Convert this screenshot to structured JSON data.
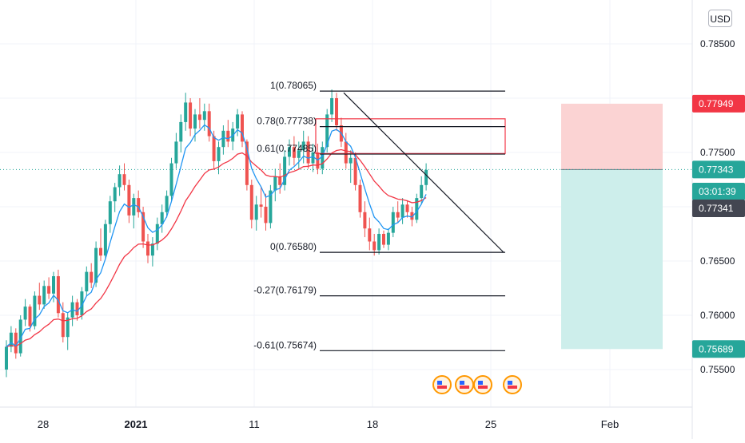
{
  "header": {
    "currency": "USD"
  },
  "chart_data": {
    "type": "candlestick",
    "title": "",
    "y_ticks": [
      "0.78500",
      "0.77500",
      "0.76500",
      "0.76000",
      "0.75500"
    ],
    "y_tick_values": [
      0.785,
      0.775,
      0.765,
      0.76,
      0.755
    ],
    "x_ticks": [
      "28",
      "2021",
      "11",
      "18",
      "25",
      "Feb"
    ],
    "price_badges": [
      {
        "label": "0.77949",
        "value": 0.77949,
        "color": "#f23645"
      },
      {
        "label": "0.77343",
        "value": 0.77343,
        "color": "#26a69a"
      },
      {
        "label": "03:01:39",
        "value": 0.7714,
        "color": "#26a69a"
      },
      {
        "label": "0.77341",
        "value": 0.76985,
        "color": "#434651"
      },
      {
        "label": "0.75689",
        "value": 0.75689,
        "color": "#26a69a"
      }
    ],
    "current_price": 0.77343,
    "fib_levels": [
      {
        "label": "1(0.78065)",
        "value": 0.78065
      },
      {
        "label": "0.78(0.77738)",
        "value": 0.77738
      },
      {
        "label": "0.61(0.77485)",
        "value": 0.77485
      },
      {
        "label": "0(0.76580)",
        "value": 0.7658
      },
      {
        "label": "-0.27(0.76179)",
        "value": 0.76179
      },
      {
        "label": "-0.61(0.75674)",
        "value": 0.75674
      }
    ],
    "supply_zone": {
      "top": 0.7781,
      "bottom": 0.7749
    },
    "position_tool": {
      "entry": 0.77343,
      "stop": 0.77949,
      "target": 0.75689
    },
    "trend_line": {
      "from": 0.7805,
      "to": 0.7658
    },
    "ma_colors": {
      "fast": "#2196f3",
      "slow": "#f23645"
    },
    "colors": {
      "up": "#26a69a",
      "down": "#ef5350",
      "stop_zone": "#fbd3d3",
      "target_zone": "#cdeeeb"
    },
    "candles": [
      [
        0.755,
        0.7577,
        0.7543,
        0.7571
      ],
      [
        0.7571,
        0.759,
        0.7566,
        0.7584
      ],
      [
        0.7584,
        0.7588,
        0.756,
        0.7565
      ],
      [
        0.7565,
        0.76,
        0.7562,
        0.7596
      ],
      [
        0.7596,
        0.7615,
        0.759,
        0.7608
      ],
      [
        0.7608,
        0.761,
        0.7585,
        0.759
      ],
      [
        0.759,
        0.7622,
        0.7587,
        0.7618
      ],
      [
        0.7618,
        0.763,
        0.7605,
        0.761
      ],
      [
        0.761,
        0.7632,
        0.7606,
        0.7627
      ],
      [
        0.7627,
        0.7635,
        0.7615,
        0.762
      ],
      [
        0.762,
        0.764,
        0.7612,
        0.7636
      ],
      [
        0.7636,
        0.7642,
        0.7598,
        0.7602
      ],
      [
        0.7602,
        0.7612,
        0.7575,
        0.758
      ],
      [
        0.758,
        0.7602,
        0.7568,
        0.7598
      ],
      [
        0.7598,
        0.7618,
        0.759,
        0.7612
      ],
      [
        0.7612,
        0.7615,
        0.7595,
        0.76
      ],
      [
        0.76,
        0.7626,
        0.7596,
        0.7622
      ],
      [
        0.7622,
        0.7645,
        0.7618,
        0.764
      ],
      [
        0.764,
        0.7648,
        0.7625,
        0.763
      ],
      [
        0.763,
        0.7668,
        0.7626,
        0.7662
      ],
      [
        0.7662,
        0.768,
        0.765,
        0.7655
      ],
      [
        0.7655,
        0.7688,
        0.7652,
        0.7684
      ],
      [
        0.7684,
        0.771,
        0.7676,
        0.7705
      ],
      [
        0.7705,
        0.7722,
        0.7695,
        0.7718
      ],
      [
        0.7718,
        0.7738,
        0.771,
        0.773
      ],
      [
        0.773,
        0.774,
        0.7715,
        0.772
      ],
      [
        0.772,
        0.7725,
        0.7685,
        0.7692
      ],
      [
        0.7692,
        0.7712,
        0.768,
        0.7708
      ],
      [
        0.7708,
        0.7715,
        0.769,
        0.7695
      ],
      [
        0.7695,
        0.77,
        0.7662,
        0.7668
      ],
      [
        0.7668,
        0.7675,
        0.7648,
        0.7655
      ],
      [
        0.7655,
        0.7672,
        0.7645,
        0.7666
      ],
      [
        0.7666,
        0.769,
        0.766,
        0.7684
      ],
      [
        0.7684,
        0.7702,
        0.7676,
        0.7695
      ],
      [
        0.7695,
        0.7715,
        0.769,
        0.771
      ],
      [
        0.771,
        0.7745,
        0.7705,
        0.774
      ],
      [
        0.774,
        0.7768,
        0.7735,
        0.776
      ],
      [
        0.776,
        0.7785,
        0.775,
        0.7778
      ],
      [
        0.7778,
        0.7805,
        0.777,
        0.7796
      ],
      [
        0.7796,
        0.78,
        0.7765,
        0.7772
      ],
      [
        0.7772,
        0.779,
        0.776,
        0.7785
      ],
      [
        0.7785,
        0.78,
        0.7772,
        0.778
      ],
      [
        0.778,
        0.7795,
        0.777,
        0.7788
      ],
      [
        0.7788,
        0.7795,
        0.776,
        0.7765
      ],
      [
        0.7765,
        0.777,
        0.7735,
        0.7742
      ],
      [
        0.7742,
        0.776,
        0.773,
        0.7755
      ],
      [
        0.7755,
        0.7775,
        0.7748,
        0.777
      ],
      [
        0.777,
        0.778,
        0.7755,
        0.776
      ],
      [
        0.776,
        0.7778,
        0.7752,
        0.7772
      ],
      [
        0.7772,
        0.779,
        0.7765,
        0.7785
      ],
      [
        0.7785,
        0.7788,
        0.7755,
        0.776
      ],
      [
        0.776,
        0.7762,
        0.7715,
        0.772
      ],
      [
        0.772,
        0.7725,
        0.768,
        0.7688
      ],
      [
        0.7688,
        0.771,
        0.7678,
        0.7702
      ],
      [
        0.7702,
        0.7718,
        0.769,
        0.77
      ],
      [
        0.77,
        0.7712,
        0.7678,
        0.7685
      ],
      [
        0.7685,
        0.772,
        0.768,
        0.7715
      ],
      [
        0.7715,
        0.7735,
        0.7705,
        0.7728
      ],
      [
        0.7728,
        0.774,
        0.7712,
        0.772
      ],
      [
        0.772,
        0.7752,
        0.7715,
        0.7746
      ],
      [
        0.7746,
        0.7762,
        0.7738,
        0.7755
      ],
      [
        0.7755,
        0.7765,
        0.7738,
        0.7745
      ],
      [
        0.7745,
        0.776,
        0.7735,
        0.7752
      ],
      [
        0.7752,
        0.777,
        0.774,
        0.776
      ],
      [
        0.776,
        0.7765,
        0.7735,
        0.774
      ],
      [
        0.774,
        0.7758,
        0.7732,
        0.775
      ],
      [
        0.775,
        0.7758,
        0.773,
        0.7735
      ],
      [
        0.7735,
        0.776,
        0.773,
        0.7755
      ],
      [
        0.7755,
        0.779,
        0.775,
        0.7785
      ],
      [
        0.7785,
        0.7808,
        0.7778,
        0.78
      ],
      [
        0.78,
        0.7805,
        0.777,
        0.7775
      ],
      [
        0.7775,
        0.7782,
        0.7755,
        0.776
      ],
      [
        0.776,
        0.7768,
        0.7735,
        0.774
      ],
      [
        0.774,
        0.7752,
        0.7722,
        0.7745
      ],
      [
        0.7745,
        0.775,
        0.7715,
        0.772
      ],
      [
        0.772,
        0.7725,
        0.769,
        0.7695
      ],
      [
        0.7695,
        0.7705,
        0.7672,
        0.768
      ],
      [
        0.768,
        0.769,
        0.766,
        0.7668
      ],
      [
        0.7668,
        0.7675,
        0.7655,
        0.766
      ],
      [
        0.766,
        0.768,
        0.7656,
        0.7675
      ],
      [
        0.7675,
        0.7678,
        0.7662,
        0.7665
      ],
      [
        0.7665,
        0.768,
        0.766,
        0.7676
      ],
      [
        0.7676,
        0.77,
        0.7672,
        0.7695
      ],
      [
        0.7695,
        0.7705,
        0.7685,
        0.769
      ],
      [
        0.769,
        0.7708,
        0.7684,
        0.7702
      ],
      [
        0.7702,
        0.7706,
        0.769,
        0.7695
      ],
      [
        0.7695,
        0.77,
        0.7682,
        0.7688
      ],
      [
        0.7688,
        0.7712,
        0.7685,
        0.7708
      ],
      [
        0.7708,
        0.7728,
        0.7702,
        0.772
      ],
      [
        0.772,
        0.774,
        0.7715,
        0.7734
      ]
    ]
  }
}
